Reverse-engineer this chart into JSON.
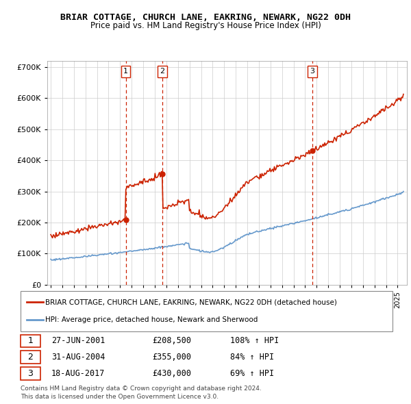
{
  "title": "BRIAR COTTAGE, CHURCH LANE, EAKRING, NEWARK, NG22 0DH",
  "subtitle": "Price paid vs. HM Land Registry's House Price Index (HPI)",
  "sale_dates_num": [
    2001.49,
    2004.66,
    2017.63
  ],
  "sale_prices": [
    208500,
    355000,
    430000
  ],
  "sale_labels": [
    "1",
    "2",
    "3"
  ],
  "sale_info": [
    {
      "label": "1",
      "date": "27-JUN-2001",
      "price": "£208,500",
      "hpi": "108% ↑ HPI"
    },
    {
      "label": "2",
      "date": "31-AUG-2004",
      "price": "£355,000",
      "hpi": "84% ↑ HPI"
    },
    {
      "label": "3",
      "date": "18-AUG-2017",
      "price": "£430,000",
      "hpi": "69% ↑ HPI"
    }
  ],
  "legend_line1": "BRIAR COTTAGE, CHURCH LANE, EAKRING, NEWARK, NG22 0DH (detached house)",
  "legend_line2": "HPI: Average price, detached house, Newark and Sherwood",
  "footer1": "Contains HM Land Registry data © Crown copyright and database right 2024.",
  "footer2": "This data is licensed under the Open Government Licence v3.0.",
  "hpi_color": "#6699cc",
  "price_color": "#cc2200",
  "dashed_color": "#cc2200",
  "bg_color": "#ffffff",
  "grid_color": "#cccccc",
  "ylim": [
    0,
    720000
  ],
  "yticks": [
    0,
    100000,
    200000,
    300000,
    400000,
    500000,
    600000,
    700000
  ]
}
